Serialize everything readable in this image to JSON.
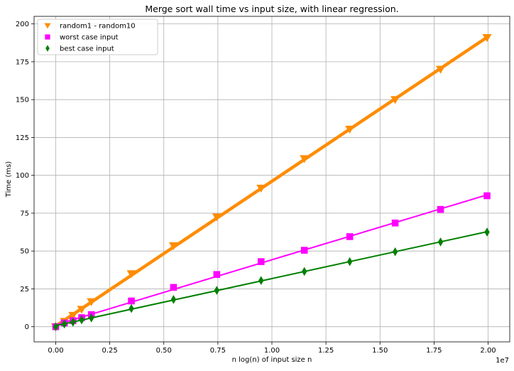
{
  "chart_data": {
    "type": "scatter",
    "title": "Merge sort wall time vs input size, with linear regression.",
    "xlabel": "n log(n) of input size n",
    "ylabel": "Time (ms)",
    "x_offset_label": "1e7",
    "xlim": [
      -0.1,
      2.1
    ],
    "ylim": [
      -10,
      205
    ],
    "x_ticks": [
      0.0,
      0.25,
      0.5,
      0.75,
      1.0,
      1.25,
      1.5,
      1.75,
      2.0
    ],
    "x_tick_labels": [
      "0.00",
      "0.25",
      "0.50",
      "0.75",
      "1.00",
      "1.25",
      "1.50",
      "1.75",
      "2.00"
    ],
    "y_ticks": [
      0,
      25,
      50,
      75,
      100,
      125,
      150,
      175,
      200
    ],
    "y_tick_labels": [
      "0",
      "25",
      "50",
      "75",
      "100",
      "125",
      "150",
      "175",
      "200"
    ],
    "grid": true,
    "legend_position": "top-left",
    "x_values": [
      0.0,
      0.04,
      0.08,
      0.12,
      0.165,
      0.35,
      0.545,
      0.745,
      0.95,
      1.15,
      1.36,
      1.57,
      1.78,
      1.995
    ],
    "series": [
      {
        "name": "random1 - random10",
        "marker": "triangle-down",
        "color": "#ff8c00",
        "line_color": "#ff8c00",
        "values": [
          0,
          3.5,
          7.5,
          11.5,
          16.5,
          35,
          53.5,
          72.5,
          91.5,
          111,
          130.5,
          150,
          170,
          191
        ]
      },
      {
        "name": "worst case input",
        "marker": "square",
        "color": "#ff00ff",
        "line_color": "#ff00ff",
        "values": [
          0,
          2.5,
          4.0,
          6.0,
          8.0,
          17.0,
          26.0,
          34.5,
          43.0,
          50.5,
          59.5,
          68.5,
          77.5,
          86.5
        ]
      },
      {
        "name": "best case input",
        "marker": "diamond",
        "color": "#008000",
        "line_color": "#008000",
        "values": [
          0,
          1.8,
          3.0,
          4.5,
          5.8,
          12.0,
          18.0,
          24.0,
          30.5,
          36.5,
          43.0,
          49.5,
          56.0,
          62.5
        ]
      }
    ]
  }
}
